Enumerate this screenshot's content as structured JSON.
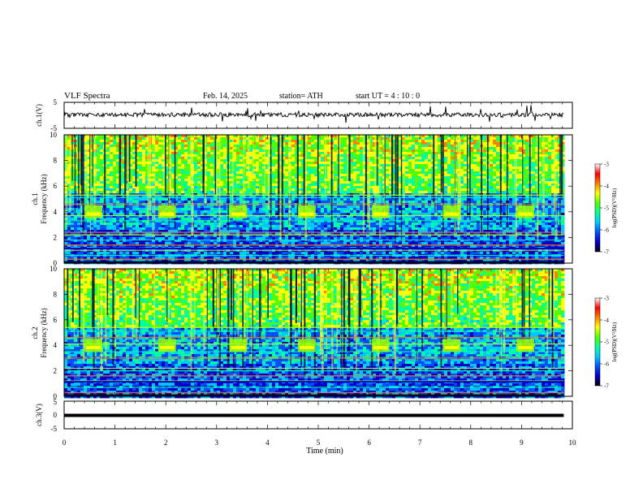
{
  "header": {
    "title": "VLF  Spectra",
    "date": "Feb. 14, 2025",
    "station": "station= ATH",
    "start_ut": "start  UT  =   4  : 10 : 0"
  },
  "colors": {
    "colormap": [
      "#000000",
      "#0000c8",
      "#0050ff",
      "#00c8ff",
      "#00ffa0",
      "#50ff00",
      "#ffff00",
      "#ff8000",
      "#ff0000",
      "#ffffff"
    ],
    "trace": "#000000",
    "axis": "#000000"
  },
  "chart_data": {
    "type": "heatmap",
    "time_axis": {
      "label": "Time  (min)",
      "range": [
        0,
        10
      ],
      "ticks": [
        0,
        1,
        2,
        3,
        4,
        5,
        6,
        7,
        8,
        9,
        10
      ],
      "data_end": 9.83
    },
    "panels": [
      {
        "kind": "line",
        "ylabel": "ch.1(V)",
        "ylim": [
          -5,
          5
        ],
        "yticks": [
          5,
          -5
        ],
        "baseline": 0.2,
        "description_of_values": "noisy voltage trace around 0 V with sporadic spikes"
      },
      {
        "kind": "spectrogram",
        "ylabel": "ch.1\nFrequency  (kHz)",
        "ylim": [
          0,
          10
        ],
        "yticks": [
          0,
          2,
          4,
          6,
          8,
          10
        ],
        "colorbar": {
          "label": "log(PSD)(V²/Hz)",
          "range": [
            -7,
            -3
          ],
          "ticks": [
            -3,
            -4,
            -5,
            -6,
            -7
          ]
        },
        "bursts_min": [
          0.4,
          1.85,
          3.25,
          4.6,
          6.05,
          7.45,
          8.9
        ],
        "burst_band_khz": [
          3.5,
          4.5
        ],
        "horizontal_lines_khz": [
          0.3,
          0.6,
          1.0,
          1.4,
          1.8,
          2.2,
          2.4,
          3.3,
          3.7,
          4.6,
          5.1,
          5.3
        ]
      },
      {
        "kind": "spectrogram",
        "ylabel": "ch.2\nFrequency  (kHz)",
        "ylim": [
          0,
          10
        ],
        "yticks": [
          0,
          2,
          4,
          6,
          8,
          10
        ],
        "colorbar": {
          "label": "log(PSD)(V²/Hz)",
          "range": [
            -7,
            -3
          ],
          "ticks": [
            -3,
            -4,
            -5,
            -6,
            -7
          ]
        },
        "bursts_min": [
          0.4,
          1.85,
          3.25,
          4.6,
          6.05,
          7.45,
          8.9
        ],
        "burst_band_khz": [
          3.5,
          4.5
        ],
        "horizontal_lines_khz": [
          0.3,
          0.7,
          1.2,
          1.6,
          2.0,
          2.2,
          3.0,
          3.5,
          4.1,
          4.6,
          5.1,
          5.4
        ]
      },
      {
        "kind": "line",
        "ylabel": "ch.3(V)",
        "ylim": [
          -5,
          5
        ],
        "yticks": [
          5,
          0,
          -5
        ],
        "baseline": 0,
        "description_of_values": "flat thick trace near 0 V"
      }
    ]
  }
}
